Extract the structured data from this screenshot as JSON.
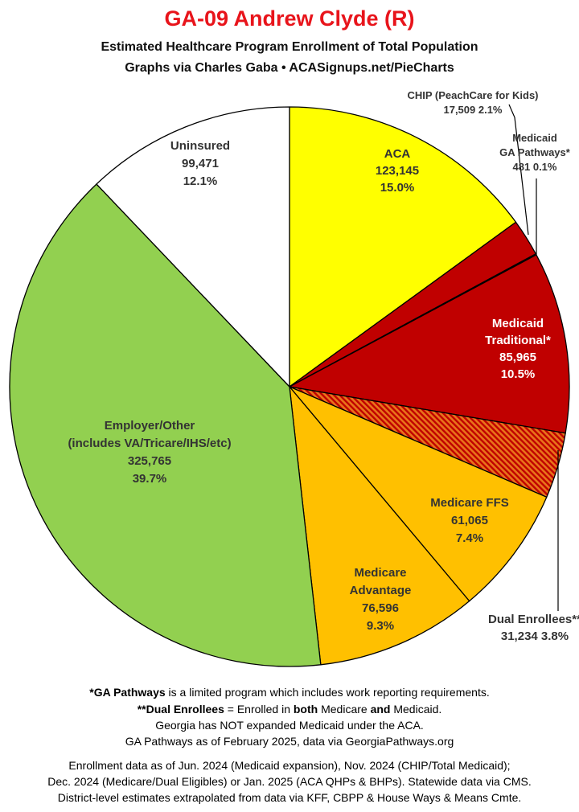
{
  "header": {
    "title": "GA-09 Andrew Clyde (R)",
    "subtitle_line1": "Estimated Healthcare Program Enrollment of Total Population",
    "subtitle_line2": "Graphs via Charles Gaba  •  ACASignups.net/PieCharts"
  },
  "chart_data": {
    "type": "pie",
    "start": "12 o'clock",
    "direction": "clockwise",
    "slices": [
      {
        "label": "ACA",
        "value": 123145,
        "percent": "15.0%",
        "color": "#ffff00",
        "text_color": "#333333"
      },
      {
        "label": "CHIP (PeachCare for Kids)",
        "value": 17509,
        "percent": "2.1%",
        "color": "#c00000",
        "text_color": "#333333"
      },
      {
        "label": "Medicaid GA Pathways*",
        "label_lines": [
          "Medicaid",
          "GA Pathways*"
        ],
        "value": 481,
        "percent": "0.1%",
        "color": "#c00000",
        "text_color": "#333333"
      },
      {
        "label": "Medicaid Traditional*",
        "label_lines": [
          "Medicaid",
          "Traditional*"
        ],
        "value": 85965,
        "percent": "10.5%",
        "color": "#c00000",
        "text_color": "#ffffff"
      },
      {
        "label": "Dual Enrollees**",
        "value": 31234,
        "percent": "3.8%",
        "color": "#c00000",
        "pattern": "red-orange-hatch",
        "text_color": "#333333"
      },
      {
        "label": "Medicare FFS",
        "value": 61065,
        "percent": "7.4%",
        "color": "#ffc000",
        "text_color": "#333333"
      },
      {
        "label": "Medicare Advantage",
        "label_lines": [
          "Medicare",
          "Advantage"
        ],
        "value": 76596,
        "percent": "9.3%",
        "color": "#ffc000",
        "text_color": "#333333"
      },
      {
        "label": "Employer/Other (includes VA/Tricare/IHS/etc)",
        "label_lines": [
          "Employer/Other",
          "(includes VA/Tricare/IHS/etc)"
        ],
        "value": 325765,
        "percent": "39.7%",
        "color": "#92d050",
        "text_color": "#333333"
      },
      {
        "label": "Uninsured",
        "value": 99471,
        "percent": "12.1%",
        "color": "#ffffff",
        "text_color": "#333333"
      }
    ],
    "value_labels": {
      "ACA": "123,145",
      "CHIP (PeachCare for Kids)": "17,509",
      "Medicaid GA Pathways*": "481",
      "Medicaid Traditional*": "85,965",
      "Dual Enrollees**": "31,234",
      "Medicare FFS": "61,065",
      "Medicare Advantage": "76,596",
      "Employer/Other (includes VA/Tricare/IHS/etc)": "325,765",
      "Uninsured": "99,471"
    }
  },
  "footer": {
    "line1_bold": "*GA Pathways",
    "line1_rest": " is a limited program which includes work reporting requirements.",
    "line2_bold": "**Dual Enrollees",
    "line2_mid1": " = Enrolled in ",
    "line2_both": "both",
    "line2_mid2": " Medicare ",
    "line2_and": "and",
    "line2_end": " Medicaid.",
    "line3": "Georgia has NOT expanded Medicaid under the ACA.",
    "line4": "GA Pathways as of February 2025, data via GeorgiaPathways.org",
    "line5": "Enrollment data as of Jun. 2024 (Medicaid expansion), Nov. 2024 (CHIP/Total Medicaid);",
    "line6": "Dec. 2024 (Medicare/Dual Eligibles) or Jan. 2025 (ACA QHPs & BHPs). Statewide data via CMS.",
    "line7": "District-level estimates extrapolated from data via KFF, CBPP & House Ways & Means Cmte."
  }
}
